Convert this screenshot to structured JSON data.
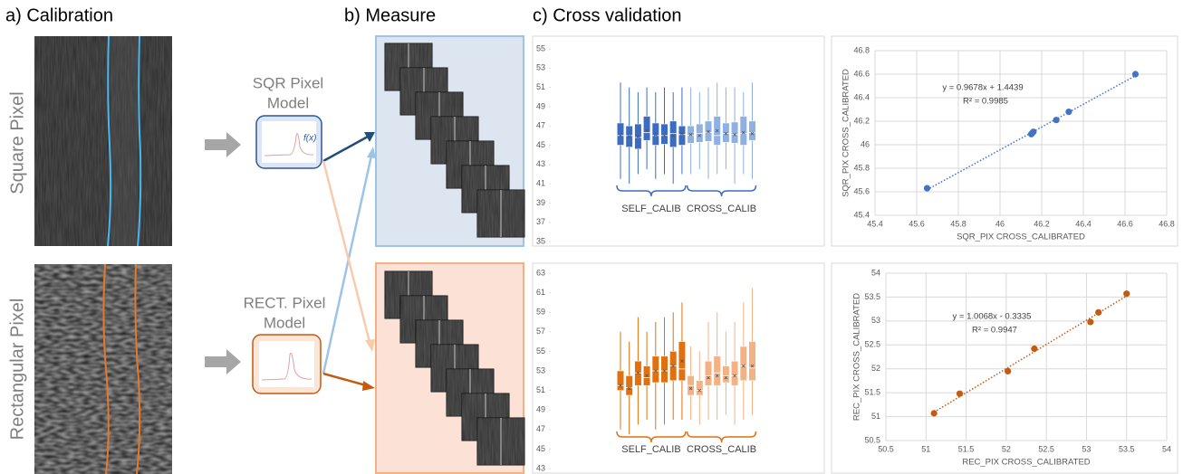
{
  "panels": {
    "a": "a) Calibration",
    "b": "b) Measure",
    "c": "c)  Cross validation"
  },
  "rows": [
    "Square Pixel",
    "Rectangular Pixel"
  ],
  "models": [
    {
      "lines": [
        "SQR Pixel",
        "Model"
      ],
      "icon_label": "f(x)"
    },
    {
      "lines": [
        "RECT. Pixel",
        "Model"
      ]
    }
  ],
  "chart_data": [
    {
      "type": "box",
      "ylim": [
        35,
        55
      ],
      "yticks": [
        35,
        37,
        39,
        41,
        43,
        45,
        47,
        49,
        51,
        53,
        55
      ],
      "series": [
        {
          "name": "SELF_CALIB",
          "color": "#3b6cc2",
          "boxes": [
            {
              "min": 41.5,
              "q1": 45,
              "median": 46,
              "q3": 47.3,
              "max": 51.5,
              "mean": 46
            },
            {
              "min": 41,
              "q1": 44.8,
              "median": 46,
              "q3": 47,
              "max": 51,
              "mean": 45.9
            },
            {
              "min": 42,
              "q1": 44.6,
              "median": 45.8,
              "q3": 47.2,
              "max": 50.5,
              "mean": 45.9
            },
            {
              "min": 42.5,
              "q1": 45.5,
              "median": 46.3,
              "q3": 48,
              "max": 51,
              "mean": 46.5
            },
            {
              "min": 41.5,
              "q1": 45,
              "median": 46,
              "q3": 47.3,
              "max": 50.5,
              "mean": 46.1
            },
            {
              "min": 42,
              "q1": 45.1,
              "median": 46,
              "q3": 47.2,
              "max": 51,
              "mean": 46
            },
            {
              "min": 41,
              "q1": 44.8,
              "median": 46.2,
              "q3": 47.5,
              "max": 50.5,
              "mean": 46
            },
            {
              "min": 42,
              "q1": 45,
              "median": 46.1,
              "q3": 47,
              "max": 51,
              "mean": 46.2
            }
          ]
        },
        {
          "name": "CROSS_CALIB",
          "color": "#8eb0e2",
          "boxes": [
            {
              "min": 42,
              "q1": 45.2,
              "median": 46,
              "q3": 47,
              "max": 51,
              "mean": 46.1
            },
            {
              "min": 42.5,
              "q1": 45.3,
              "median": 46.2,
              "q3": 47.2,
              "max": 50.5,
              "mean": 46
            },
            {
              "min": 41.5,
              "q1": 45.4,
              "median": 46.3,
              "q3": 47.5,
              "max": 51,
              "mean": 46.4
            },
            {
              "min": 42,
              "q1": 45,
              "median": 46,
              "q3": 48,
              "max": 51.5,
              "mean": 46.5
            },
            {
              "min": 42.5,
              "q1": 45.3,
              "median": 46.2,
              "q3": 47.3,
              "max": 51,
              "mean": 46.2
            },
            {
              "min": 41,
              "q1": 45.2,
              "median": 46.1,
              "q3": 47.4,
              "max": 51,
              "mean": 46.1
            },
            {
              "min": 42,
              "q1": 45,
              "median": 46.2,
              "q3": 48,
              "max": 50.5,
              "mean": 46.3
            },
            {
              "min": 41.5,
              "q1": 45.5,
              "median": 46.3,
              "q3": 47.5,
              "max": 51.5,
              "mean": 46.2
            }
          ]
        }
      ]
    },
    {
      "type": "scatter",
      "xlabel": "SQR_PIX  CROSS_CALIBRATED",
      "ylabel": "SQR_PIX  CROSS_CALIBRATED",
      "x": [
        45.65,
        46.15,
        46.16,
        46.155,
        46.27,
        46.33,
        46.65
      ],
      "values": [
        45.63,
        46.09,
        46.11,
        46.1,
        46.21,
        46.28,
        46.6
      ],
      "color": "#4472c4",
      "annotations": [
        "y = 0.9678x + 1.4439",
        "R² = 0.9985"
      ],
      "xlim": [
        45.4,
        46.8
      ],
      "xticks": [
        45.4,
        45.6,
        45.8,
        46,
        46.2,
        46.4,
        46.6,
        46.8
      ],
      "ylim": [
        45.4,
        46.8
      ],
      "yticks": [
        45.4,
        45.6,
        45.8,
        46,
        46.2,
        46.4,
        46.6,
        46.8
      ],
      "grid": true
    },
    {
      "type": "box",
      "ylim": [
        43,
        63
      ],
      "yticks": [
        43,
        45,
        47,
        49,
        51,
        53,
        55,
        57,
        59,
        61,
        63
      ],
      "series": [
        {
          "name": "SELF_CALIB",
          "color": "#e2700f",
          "boxes": [
            {
              "min": 47,
              "q1": 51,
              "median": 51.5,
              "q3": 53,
              "max": 57,
              "mean": 51.5
            },
            {
              "min": 46.5,
              "q1": 50.5,
              "median": 51.3,
              "q3": 52.5,
              "max": 56,
              "mean": 51.2
            },
            {
              "min": 47.5,
              "q1": 51.5,
              "median": 52.8,
              "q3": 54,
              "max": 58.5,
              "mean": 52.8
            },
            {
              "min": 48,
              "q1": 51.5,
              "median": 52.3,
              "q3": 53.5,
              "max": 57,
              "mean": 52.5
            },
            {
              "min": 47,
              "q1": 51.8,
              "median": 53,
              "q3": 54.5,
              "max": 58,
              "mean": 53
            },
            {
              "min": 47.5,
              "q1": 51.8,
              "median": 53,
              "q3": 54.5,
              "max": 58.5,
              "mean": 53
            },
            {
              "min": 48,
              "q1": 52,
              "median": 53.5,
              "q3": 55,
              "max": 59,
              "mean": 53.5
            },
            {
              "min": 48,
              "q1": 52,
              "median": 53.2,
              "q3": 56,
              "max": 60,
              "mean": 54
            }
          ]
        },
        {
          "name": "CROSS_CALIB",
          "color": "#f4b183",
          "boxes": [
            {
              "min": 48,
              "q1": 50.5,
              "median": 51.5,
              "q3": 52.5,
              "max": 55.5,
              "mean": 51.2
            },
            {
              "min": 47.5,
              "q1": 50.5,
              "median": 51,
              "q3": 52,
              "max": 55,
              "mean": 51
            },
            {
              "min": 48,
              "q1": 51.5,
              "median": 52.5,
              "q3": 54,
              "max": 58,
              "mean": 52.3
            },
            {
              "min": 48,
              "q1": 51.5,
              "median": 52.8,
              "q3": 54.5,
              "max": 59,
              "mean": 52.5
            },
            {
              "min": 48.5,
              "q1": 51.8,
              "median": 52.5,
              "q3": 53.5,
              "max": 57,
              "mean": 52.3
            },
            {
              "min": 47.5,
              "q1": 51.5,
              "median": 52.5,
              "q3": 54,
              "max": 58,
              "mean": 52.5
            },
            {
              "min": 48,
              "q1": 52,
              "median": 53.5,
              "q3": 55.5,
              "max": 60,
              "mean": 53.5
            },
            {
              "min": 48.5,
              "q1": 52,
              "median": 53.3,
              "q3": 56,
              "max": 61.5,
              "mean": 53.5
            }
          ]
        }
      ]
    },
    {
      "type": "scatter",
      "xlabel": "REC_PIX  CROSS_CALIBRATED",
      "ylabel": "REC_PIX  CROSS_CALIBRATED",
      "x": [
        51.1,
        51.42,
        52.02,
        52.35,
        53.05,
        53.15,
        53.5
      ],
      "values": [
        51.07,
        51.48,
        51.95,
        52.42,
        52.98,
        53.18,
        53.57
      ],
      "color": "#c55a11",
      "annotations": [
        "y = 1.0068x - 0.3335",
        "R² = 0.9947"
      ],
      "xlim": [
        50.5,
        54
      ],
      "xticks": [
        50.5,
        51,
        51.5,
        52,
        52.5,
        53,
        53.5,
        54
      ],
      "ylim": [
        50.5,
        54
      ],
      "yticks": [
        50.5,
        51,
        51.5,
        52,
        52.5,
        53,
        53.5,
        54
      ],
      "grid": true
    }
  ]
}
